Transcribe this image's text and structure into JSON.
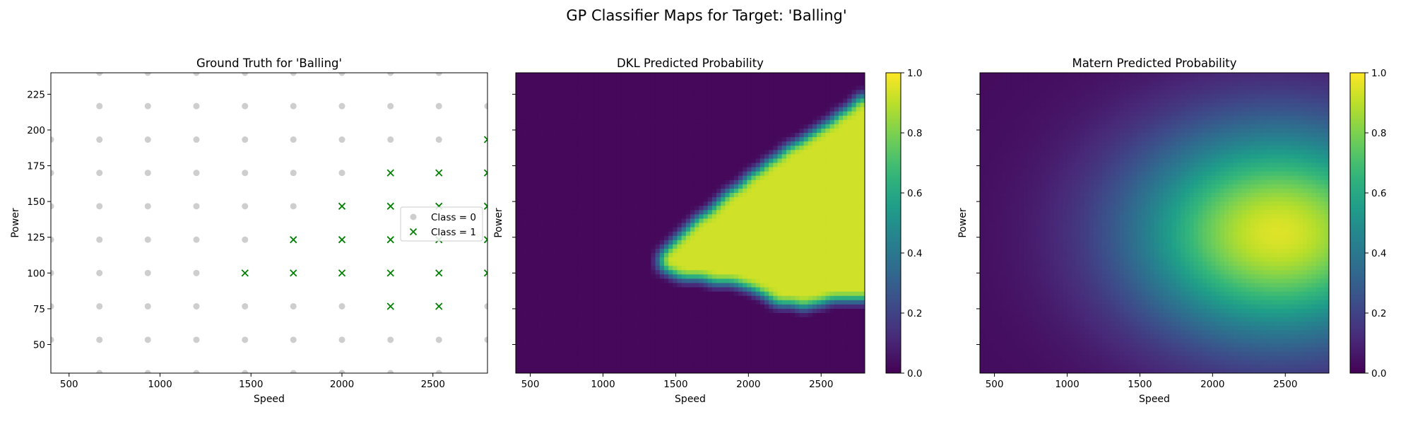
{
  "figure": {
    "suptitle": "GP Classifier Maps for Target: 'Balling'"
  },
  "colors": {
    "class0": "#bdbdbd",
    "class1": "#008000",
    "axes": "#000000",
    "background": "#ffffff"
  },
  "chart_data": [
    {
      "type": "scatter",
      "title": "Ground Truth for 'Balling'",
      "xlabel": "Speed",
      "ylabel": "Power",
      "xlim": [
        400,
        2800
      ],
      "ylim": [
        30,
        240
      ],
      "xticks": [
        500,
        1000,
        1500,
        2000,
        2500
      ],
      "yticks": [
        50,
        75,
        100,
        125,
        150,
        175,
        200,
        225
      ],
      "legend": {
        "placement": "center-right",
        "entries": [
          "Class = 0",
          "Class = 1"
        ]
      },
      "series": [
        {
          "name": "Class = 0",
          "marker": "circle",
          "color": "#bdbdbd",
          "points": [
            [
              667,
              30
            ],
            [
              933,
              30
            ],
            [
              1200,
              30
            ],
            [
              1467,
              30
            ],
            [
              1733,
              30
            ],
            [
              2000,
              30
            ],
            [
              2267,
              30
            ],
            [
              2533,
              30
            ],
            [
              400,
              53.3
            ],
            [
              667,
              53.3
            ],
            [
              933,
              53.3
            ],
            [
              1200,
              53.3
            ],
            [
              1467,
              53.3
            ],
            [
              1733,
              53.3
            ],
            [
              2000,
              53.3
            ],
            [
              2267,
              53.3
            ],
            [
              2533,
              53.3
            ],
            [
              2800,
              53.3
            ],
            [
              400,
              76.7
            ],
            [
              667,
              76.7
            ],
            [
              933,
              76.7
            ],
            [
              1200,
              76.7
            ],
            [
              1467,
              76.7
            ],
            [
              1733,
              76.7
            ],
            [
              2000,
              76.7
            ],
            [
              2800,
              76.7
            ],
            [
              400,
              100
            ],
            [
              667,
              100
            ],
            [
              933,
              100
            ],
            [
              1200,
              100
            ],
            [
              400,
              123.3
            ],
            [
              667,
              123.3
            ],
            [
              933,
              123.3
            ],
            [
              1200,
              123.3
            ],
            [
              1467,
              123.3
            ],
            [
              400,
              146.7
            ],
            [
              667,
              146.7
            ],
            [
              933,
              146.7
            ],
            [
              1200,
              146.7
            ],
            [
              1467,
              146.7
            ],
            [
              1733,
              146.7
            ],
            [
              400,
              170
            ],
            [
              667,
              170
            ],
            [
              933,
              170
            ],
            [
              1200,
              170
            ],
            [
              1467,
              170
            ],
            [
              1733,
              170
            ],
            [
              2000,
              170
            ],
            [
              400,
              193.3
            ],
            [
              667,
              193.3
            ],
            [
              933,
              193.3
            ],
            [
              1200,
              193.3
            ],
            [
              1467,
              193.3
            ],
            [
              1733,
              193.3
            ],
            [
              2000,
              193.3
            ],
            [
              2267,
              193.3
            ],
            [
              2533,
              193.3
            ],
            [
              667,
              216.7
            ],
            [
              933,
              216.7
            ],
            [
              1200,
              216.7
            ],
            [
              1467,
              216.7
            ],
            [
              1733,
              216.7
            ],
            [
              2000,
              216.7
            ],
            [
              2267,
              216.7
            ],
            [
              2533,
              216.7
            ],
            [
              2800,
              216.7
            ],
            [
              667,
              240
            ],
            [
              933,
              240
            ],
            [
              1200,
              240
            ],
            [
              1467,
              240
            ],
            [
              1733,
              240
            ],
            [
              2000,
              240
            ],
            [
              2267,
              240
            ],
            [
              2533,
              240
            ]
          ]
        },
        {
          "name": "Class = 1",
          "marker": "x",
          "color": "#008000",
          "points": [
            [
              2267,
              76.7
            ],
            [
              2533,
              76.7
            ],
            [
              1467,
              100
            ],
            [
              1733,
              100
            ],
            [
              2000,
              100
            ],
            [
              2267,
              100
            ],
            [
              2533,
              100
            ],
            [
              2800,
              100
            ],
            [
              1733,
              123.3
            ],
            [
              2000,
              123.3
            ],
            [
              2267,
              123.3
            ],
            [
              2533,
              123.3
            ],
            [
              2800,
              123.3
            ],
            [
              2000,
              146.7
            ],
            [
              2267,
              146.7
            ],
            [
              2533,
              146.7
            ],
            [
              2800,
              146.7
            ],
            [
              2267,
              170
            ],
            [
              2533,
              170
            ],
            [
              2800,
              170
            ],
            [
              2800,
              193.3
            ]
          ]
        }
      ]
    },
    {
      "type": "heatmap",
      "title": "DKL Predicted Probability",
      "xlabel": "Speed",
      "ylabel": "Power",
      "xlim": [
        400,
        2800
      ],
      "ylim": [
        30,
        240
      ],
      "xticks": [
        500,
        1000,
        1500,
        2000,
        2500
      ],
      "yticks": [
        50,
        75,
        100,
        125,
        150,
        175,
        200,
        225
      ],
      "colormap": "viridis",
      "colorbar": {
        "range": [
          0,
          1
        ],
        "ticks": [
          "0.0",
          "0.2",
          "0.4",
          "0.6",
          "0.8",
          "1.0"
        ]
      },
      "high_region_polygon": [
        [
          1380,
          112
        ],
        [
          1500,
          122
        ],
        [
          1700,
          142
        ],
        [
          1950,
          163
        ],
        [
          2250,
          186
        ],
        [
          2550,
          205
        ],
        [
          2800,
          225
        ],
        [
          2800,
          80
        ],
        [
          2600,
          82
        ],
        [
          2400,
          76
        ],
        [
          2200,
          78
        ],
        [
          2050,
          88
        ],
        [
          1900,
          92
        ],
        [
          1700,
          95
        ],
        [
          1520,
          97
        ],
        [
          1400,
          102
        ]
      ]
    },
    {
      "type": "heatmap",
      "title": "Matern Predicted Probability",
      "xlabel": "Speed",
      "ylabel": "Power",
      "xlim": [
        400,
        2800
      ],
      "ylim": [
        30,
        240
      ],
      "xticks": [
        500,
        1000,
        1500,
        2000,
        2500
      ],
      "yticks": [
        50,
        75,
        100,
        125,
        150,
        175,
        200,
        225
      ],
      "colormap": "viridis",
      "colorbar": {
        "range": [
          0,
          1
        ],
        "ticks": [
          "0.0",
          "0.2",
          "0.4",
          "0.6",
          "0.8",
          "1.0"
        ]
      },
      "peak": {
        "speed": 2450,
        "power": 128,
        "value": 0.95
      }
    }
  ]
}
